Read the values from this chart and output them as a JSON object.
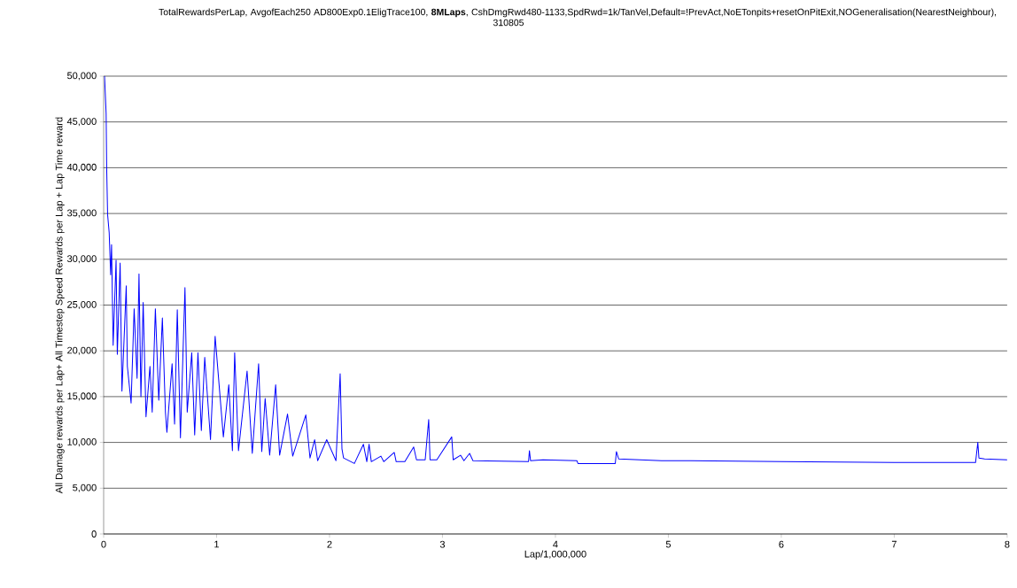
{
  "chart_data": {
    "type": "line",
    "title": "TotalRewardsPerLap, AvgofEach250 AD800Exp0.1EligTrace100, **8MLaps**, CshDmgRwd480-1133,SpdRwd=1k/TanVel,Default=!PrevAct,NoETonpits+resetOnPitExit,NOGeneralisation(NearestNeighbour), 310805",
    "xlabel": "Lap/1,000,000",
    "ylabel": "All Damage rewards per Lap+ All Timestep Speed Rewards per Lap + Lap Time reward",
    "xlim": [
      0,
      8
    ],
    "xticks": [
      0,
      1,
      2,
      3,
      4,
      5,
      6,
      7,
      8
    ],
    "ylim": [
      0,
      50000
    ],
    "yticks": [
      {
        "value": 0,
        "label": "0"
      },
      {
        "value": 5000,
        "label": "5,000"
      },
      {
        "value": 10000,
        "label": "10,000"
      },
      {
        "value": 15000,
        "label": "15,000"
      },
      {
        "value": 20000,
        "label": "20,000"
      },
      {
        "value": 25000,
        "label": "25,000"
      },
      {
        "value": 30000,
        "label": "30,000"
      },
      {
        "value": 35000,
        "label": "35,000"
      },
      {
        "value": 40000,
        "label": "40,000"
      },
      {
        "value": 45000,
        "label": "45,000"
      },
      {
        "value": 50000,
        "label": "50,000"
      }
    ],
    "grid": "y",
    "marker": "none",
    "line_style": "solid",
    "series": [
      {
        "color": "#0000ff",
        "x": [
          0.008,
          0.022,
          0.027,
          0.035,
          0.049,
          0.062,
          0.07,
          0.084,
          0.11,
          0.121,
          0.146,
          0.162,
          0.2,
          0.21,
          0.243,
          0.27,
          0.296,
          0.313,
          0.33,
          0.35,
          0.375,
          0.41,
          0.43,
          0.458,
          0.488,
          0.52,
          0.547,
          0.56,
          0.606,
          0.628,
          0.652,
          0.68,
          0.72,
          0.74,
          0.78,
          0.806,
          0.835,
          0.865,
          0.895,
          0.946,
          0.987,
          1.06,
          1.108,
          1.14,
          1.16,
          1.194,
          1.27,
          1.316,
          1.372,
          1.4,
          1.43,
          1.47,
          1.523,
          1.558,
          1.628,
          1.674,
          1.79,
          1.827,
          1.868,
          1.895,
          1.975,
          2.057,
          2.094,
          2.11,
          2.124,
          2.22,
          2.3,
          2.33,
          2.35,
          2.37,
          2.455,
          2.48,
          2.573,
          2.59,
          2.667,
          2.745,
          2.77,
          2.847,
          2.878,
          2.89,
          2.95,
          3.082,
          3.095,
          3.16,
          3.19,
          3.24,
          3.27,
          3.762,
          3.77,
          3.78,
          3.89,
          4.19,
          4.2,
          4.53,
          4.54,
          4.56,
          4.94,
          5.2,
          6.0,
          7.0,
          7.72,
          7.74,
          7.75,
          7.8,
          8.0
        ],
        "values": [
          50000,
          45900,
          39900,
          34900,
          32900,
          28300,
          31600,
          20600,
          29900,
          19600,
          29600,
          15600,
          27100,
          18300,
          14300,
          24600,
          17000,
          28400,
          15000,
          25300,
          12800,
          18300,
          13300,
          24600,
          14600,
          23600,
          13300,
          11100,
          18600,
          12000,
          24500,
          10500,
          26900,
          13300,
          19800,
          10800,
          19800,
          11300,
          19300,
          10300,
          21600,
          10600,
          16300,
          9100,
          19800,
          9100,
          17800,
          8800,
          18600,
          9000,
          14800,
          8600,
          16300,
          8600,
          13100,
          8500,
          13000,
          8300,
          10300,
          8000,
          10300,
          8000,
          17500,
          9300,
          8300,
          7700,
          9800,
          7900,
          9800,
          7900,
          8500,
          7900,
          8900,
          7900,
          7900,
          9500,
          8100,
          8100,
          12500,
          8100,
          8100,
          10600,
          8100,
          8600,
          8000,
          8800,
          8000,
          7900,
          9100,
          8000,
          8100,
          8000,
          7700,
          7700,
          9000,
          8200,
          8000,
          8000,
          7900,
          7800,
          7800,
          10000,
          8300,
          8200,
          8100
        ]
      }
    ]
  }
}
